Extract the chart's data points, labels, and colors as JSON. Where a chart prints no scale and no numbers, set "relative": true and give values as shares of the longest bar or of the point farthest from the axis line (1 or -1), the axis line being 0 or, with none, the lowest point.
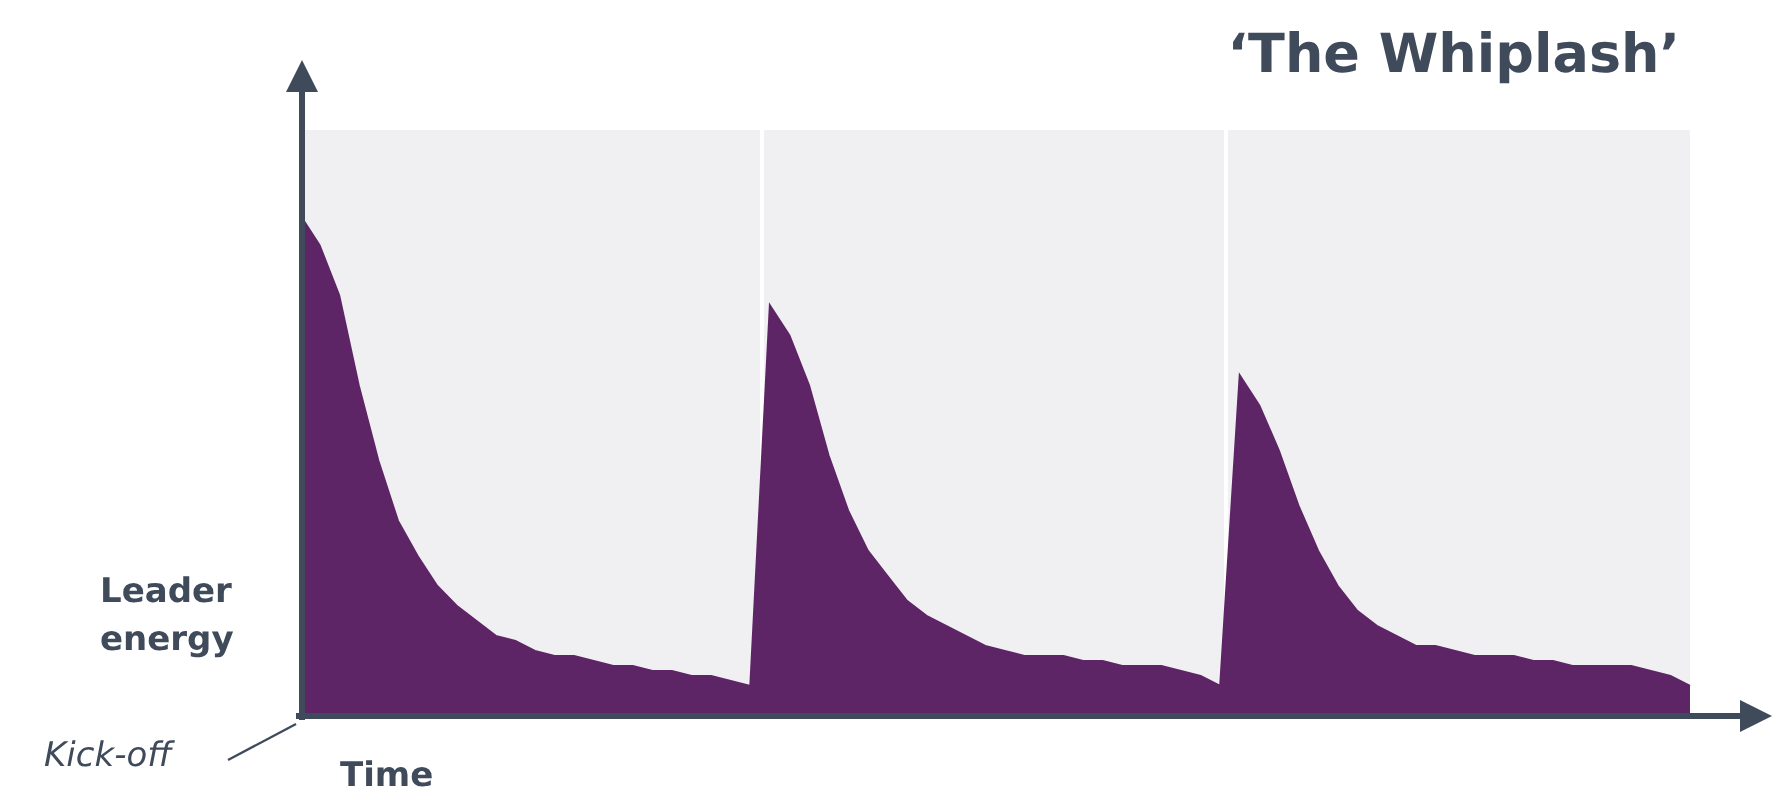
{
  "chart_data": {
    "type": "area",
    "title": "‘The Whiplash’",
    "xlabel": "Time",
    "ylabel": "Leader energy",
    "annotations": [
      "Kick-off"
    ],
    "relative": true,
    "legend": false,
    "categories": [
      null,
      null,
      null,
      null,
      null,
      null,
      null,
      null,
      null,
      null,
      null,
      null,
      null,
      null,
      null,
      null,
      null,
      null,
      null,
      null,
      null,
      null,
      null,
      null,
      null,
      null,
      null,
      null,
      null,
      null,
      null,
      null,
      null,
      null,
      null,
      null,
      null,
      null,
      null,
      null,
      null,
      null,
      null,
      null,
      null,
      null,
      null,
      null,
      null,
      null,
      null,
      null,
      null,
      null,
      null,
      null,
      null,
      null,
      null,
      null,
      null,
      null,
      null,
      null,
      null,
      null,
      null,
      null,
      null,
      null,
      null,
      null
    ],
    "series": [
      {
        "color": "#5e2566",
        "values": [
          1,
          0.94,
          0.84,
          0.66,
          0.51,
          0.39,
          0.32,
          0.26,
          0.22,
          0.19,
          0.16,
          0.15,
          0.13,
          0.12,
          0.12,
          0.11,
          0.1,
          0.1,
          0.09,
          0.09,
          0.08,
          0.08,
          0.07,
          0.06,
          0.82,
          0.76,
          0.66,
          0.52,
          0.41,
          0.33,
          0.28,
          0.23,
          0.2,
          0.18,
          0.16,
          0.14,
          0.13,
          0.12,
          0.12,
          0.12,
          0.11,
          0.11,
          0.1,
          0.1,
          0.1,
          0.09,
          0.08,
          0.06,
          0.68,
          0.62,
          0.53,
          0.42,
          0.33,
          0.26,
          0.21,
          0.18,
          0.16,
          0.14,
          0.14,
          0.13,
          0.12,
          0.12,
          0.12,
          0.11,
          0.11,
          0.1,
          0.1,
          0.1,
          0.1,
          0.09,
          0.08,
          0.06
        ]
      }
    ]
  }
}
